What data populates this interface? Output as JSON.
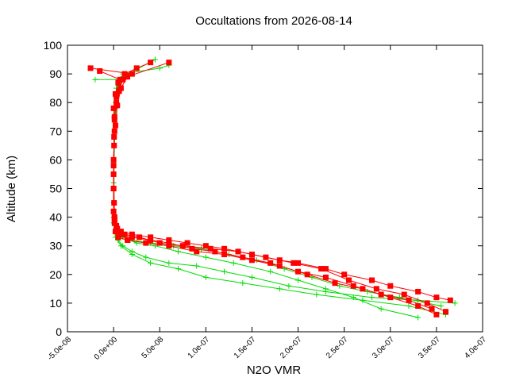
{
  "chart_data": {
    "type": "line",
    "title": "Occultations from 2026-08-14",
    "xlabel": "N2O VMR",
    "ylabel": "Altitude (km)",
    "xlim": [
      -5e-08,
      4e-07
    ],
    "ylim": [
      0,
      100
    ],
    "x_ticks": [
      "-5.0e-08",
      "0.0e+00",
      "5.0e-08",
      "1.0e-07",
      "1.5e-07",
      "2.0e-07",
      "2.5e-07",
      "3.0e-07",
      "3.5e-07",
      "4.0e-07"
    ],
    "x_tick_values": [
      -5e-08,
      0,
      5e-08,
      1e-07,
      1.5e-07,
      2e-07,
      2.5e-07,
      3e-07,
      3.5e-07,
      4e-07
    ],
    "y_ticks": [
      "0",
      "10",
      "20",
      "30",
      "40",
      "50",
      "60",
      "70",
      "80",
      "90",
      "100"
    ],
    "y_tick_values": [
      0,
      10,
      20,
      30,
      40,
      50,
      60,
      70,
      80,
      90,
      100
    ],
    "grid": false,
    "legend": "none",
    "colors": {
      "red_series": "#ff0000",
      "green_series": "#00dd00",
      "axes": "#000000"
    },
    "series": [
      {
        "color": "red",
        "marker": "square",
        "x": [
          3.65e-07,
          3.5e-07,
          3.3e-07,
          3e-07,
          2.8e-07,
          2.5e-07,
          2.3e-07,
          2e-07,
          1.8e-07,
          1.5e-07,
          1.2e-07,
          1e-07,
          8e-08,
          6e-08,
          4e-08,
          2e-08,
          8e-09,
          3e-09,
          1e-09,
          5e-10,
          0,
          0,
          1e-09,
          0,
          2e-09,
          5e-09,
          1.2e-08,
          2.5e-08,
          4e-08
        ],
        "y": [
          11,
          12,
          14,
          16,
          18,
          20,
          22,
          24,
          25,
          27,
          29,
          30,
          31,
          32,
          33,
          34,
          35,
          37,
          40,
          45,
          50,
          60,
          70,
          78,
          83,
          87,
          90,
          92,
          94
        ]
      },
      {
        "color": "red",
        "marker": "square",
        "x": [
          3.5e-07,
          3.3e-07,
          3e-07,
          2.7e-07,
          2.4e-07,
          2.1e-07,
          1.8e-07,
          1.5e-07,
          1.2e-07,
          9e-08,
          6e-08,
          3.5e-08,
          1.5e-08,
          5e-09,
          2e-09,
          1e-09,
          0,
          0,
          5e-10,
          1e-09,
          3e-09,
          6e-09,
          1e-08,
          2e-08,
          -2.5e-08
        ],
        "y": [
          6,
          9,
          12,
          15,
          17,
          20,
          23,
          25,
          27,
          28,
          30,
          31,
          32,
          33,
          35,
          38,
          42,
          55,
          68,
          75,
          80,
          84,
          88,
          90,
          92
        ]
      },
      {
        "color": "red",
        "marker": "square",
        "x": [
          3.45e-07,
          3.2e-07,
          2.9e-07,
          2.6e-07,
          2.3e-07,
          2e-07,
          1.7e-07,
          1.4e-07,
          1.1e-07,
          8.5e-08,
          6e-08,
          4e-08,
          2e-08,
          8e-09,
          3e-09,
          1e-09,
          0,
          5e-10,
          2e-09,
          4e-09,
          8e-09,
          1.5e-08,
          6e-08
        ],
        "y": [
          8,
          11,
          13,
          16,
          19,
          21,
          24,
          26,
          28,
          29,
          31,
          32,
          33,
          34,
          36,
          39,
          50,
          65,
          72,
          79,
          85,
          89,
          94
        ]
      },
      {
        "color": "red",
        "marker": "square",
        "x": [
          3.6e-07,
          3.4e-07,
          3.15e-07,
          2.85e-07,
          2.55e-07,
          2.25e-07,
          1.95e-07,
          1.65e-07,
          1.35e-07,
          1.05e-07,
          7.5e-08,
          5e-08,
          2.8e-08,
          1.2e-08,
          4e-09,
          1e-09,
          0,
          1e-09,
          3e-09,
          7e-09,
          -1.5e-08
        ],
        "y": [
          7,
          10,
          13,
          15,
          18,
          22,
          24,
          26,
          28,
          29,
          30,
          31,
          33,
          34,
          36,
          40,
          58,
          74,
          82,
          88,
          91
        ]
      },
      {
        "color": "green",
        "marker": "plus",
        "x": [
          3.7e-07,
          3.3e-07,
          2.8e-07,
          2.3e-07,
          1.9e-07,
          1.5e-07,
          1.2e-07,
          9e-08,
          6e-08,
          3.5e-08,
          2e-08,
          1e-08,
          5e-09,
          2e-09,
          0,
          0,
          2e-09,
          5e-09,
          1e-08,
          5e-08,
          6e-08
        ],
        "y": [
          10,
          11,
          12,
          14,
          16,
          19,
          21,
          23,
          24,
          26,
          28,
          30,
          32,
          35,
          40,
          60,
          80,
          86,
          90,
          92,
          93
        ]
      },
      {
        "color": "green",
        "marker": "plus",
        "x": [
          3.6e-07,
          3.2e-07,
          2.7e-07,
          2.2e-07,
          1.8e-07,
          1.4e-07,
          1e-07,
          7e-08,
          4e-08,
          2e-08,
          8e-09,
          2e-09,
          0,
          1e-09,
          4e-09,
          8e-09,
          -2e-08
        ],
        "y": [
          6,
          9,
          11,
          13,
          15,
          17,
          19,
          22,
          24,
          27,
          30,
          33,
          38,
          70,
          83,
          88,
          88
        ]
      },
      {
        "color": "green",
        "marker": "plus",
        "x": [
          3.3e-07,
          2.9e-07,
          2.6e-07,
          2.3e-07,
          2e-07,
          1.7e-07,
          1.3e-07,
          1e-07,
          7e-08,
          4.5e-08,
          2.5e-08,
          1e-08,
          3e-09,
          0,
          5e-10,
          3e-09,
          1e-08,
          4.5e-08
        ],
        "y": [
          5,
          8,
          12,
          15,
          18,
          21,
          24,
          26,
          28,
          30,
          31,
          33,
          35,
          45,
          75,
          85,
          89,
          95
        ]
      },
      {
        "color": "green",
        "marker": "plus",
        "x": [
          3.55e-07,
          3.1e-07,
          2.75e-07,
          2.45e-07,
          2.15e-07,
          1.85e-07,
          1.55e-07,
          1.25e-07,
          9.5e-08,
          6.5e-08,
          4e-08,
          1.8e-08,
          6e-09,
          1e-09,
          0,
          2e-09,
          6e-09,
          2.5e-08
        ],
        "y": [
          9,
          12,
          14,
          16,
          19,
          22,
          25,
          27,
          29,
          30,
          31,
          32,
          34,
          37,
          52,
          78,
          87,
          92
        ]
      }
    ]
  }
}
